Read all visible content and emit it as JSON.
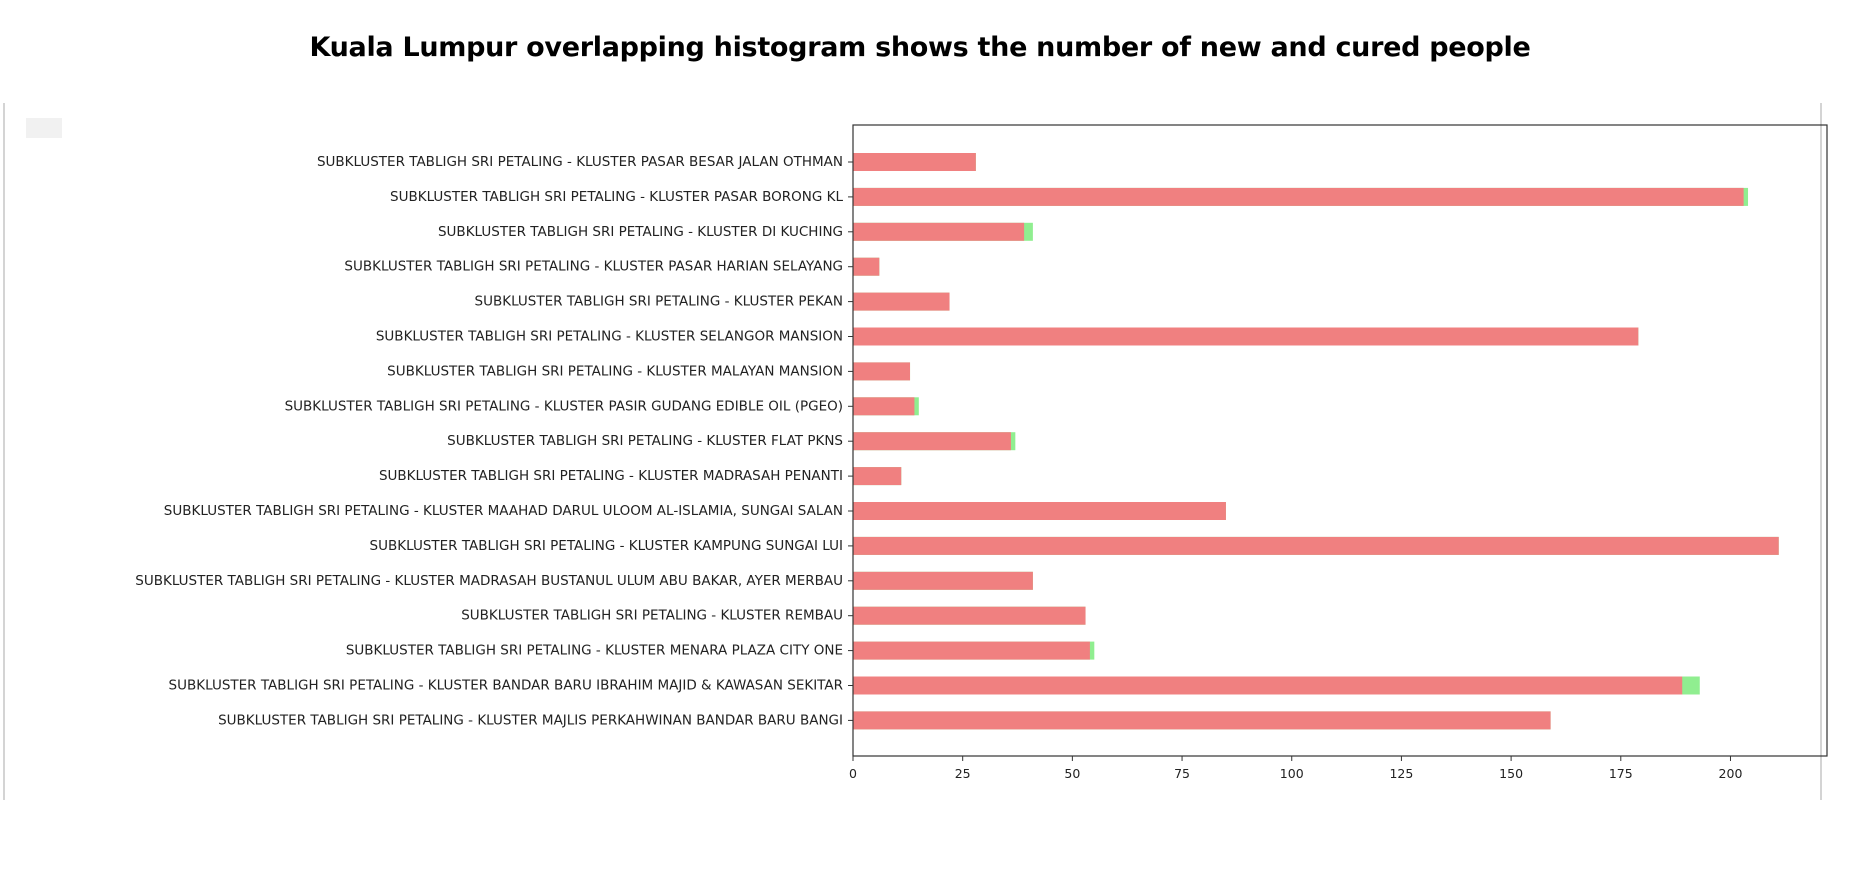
{
  "title": "Kuala Lumpur overlapping histogram shows the number of new and cured people",
  "chart_data": {
    "type": "bar",
    "orientation": "horizontal",
    "title": "",
    "xlabel": "",
    "ylabel": "",
    "xlim": [
      0,
      222
    ],
    "xticks": [
      0,
      25,
      50,
      75,
      100,
      125,
      150,
      175,
      200
    ],
    "grid": false,
    "categories": [
      "SUBKLUSTER TABLIGH SRI PETALING - KLUSTER PASAR BESAR JALAN OTHMAN",
      "SUBKLUSTER TABLIGH SRI PETALING - KLUSTER PASAR BORONG KL",
      "SUBKLUSTER TABLIGH SRI PETALING - KLUSTER DI KUCHING",
      "SUBKLUSTER TABLIGH SRI PETALING - KLUSTER PASAR HARIAN SELAYANG",
      "SUBKLUSTER TABLIGH SRI PETALING - KLUSTER PEKAN",
      "SUBKLUSTER TABLIGH SRI PETALING - KLUSTER SELANGOR MANSION",
      "SUBKLUSTER TABLIGH SRI PETALING - KLUSTER MALAYAN MANSION",
      "SUBKLUSTER TABLIGH SRI PETALING - KLUSTER PASIR GUDANG EDIBLE OIL (PGEO)",
      "SUBKLUSTER TABLIGH SRI PETALING - KLUSTER FLAT PKNS",
      "SUBKLUSTER TABLIGH SRI PETALING - KLUSTER MADRASAH PENANTI",
      "SUBKLUSTER TABLIGH SRI PETALING - KLUSTER MAAHAD DARUL ULOOM AL-ISLAMIA, SUNGAI SALAN",
      "SUBKLUSTER TABLIGH SRI PETALING - KLUSTER KAMPUNG SUNGAI LUI",
      "SUBKLUSTER TABLIGH SRI PETALING - KLUSTER MADRASAH BUSTANUL ULUM ABU BAKAR, AYER MERBAU",
      "SUBKLUSTER TABLIGH SRI PETALING - KLUSTER REMBAU",
      "SUBKLUSTER TABLIGH SRI PETALING - KLUSTER MENARA PLAZA CITY ONE",
      "SUBKLUSTER TABLIGH SRI PETALING - KLUSTER BANDAR BARU IBRAHIM MAJID & KAWASAN SEKITAR",
      "SUBKLUSTER TABLIGH SRI PETALING - KLUSTER MAJLIS PERKAHWINAN BANDAR BARU BANGI"
    ],
    "series": [
      {
        "color": "#90ee90",
        "values": [
          28,
          204,
          41,
          6,
          22,
          179,
          13,
          15,
          37,
          11,
          85,
          211,
          41,
          53,
          55,
          193,
          159
        ]
      },
      {
        "color": "#f08080",
        "values": [
          28,
          203,
          39,
          6,
          22,
          179,
          13,
          14,
          36,
          11,
          85,
          211,
          41,
          53,
          54,
          189,
          159
        ]
      }
    ]
  }
}
